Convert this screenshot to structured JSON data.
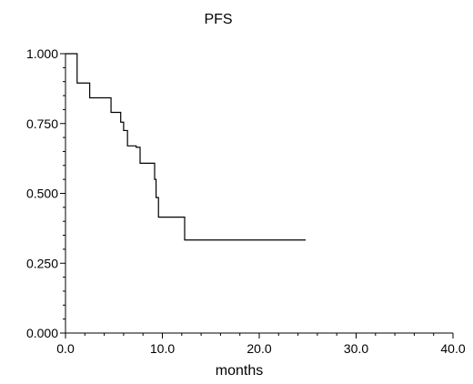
{
  "chart_data": {
    "type": "line",
    "title": "PFS",
    "xlabel": "months",
    "ylabel": "",
    "xlim": [
      0,
      40
    ],
    "ylim": [
      0,
      1
    ],
    "x_ticks": [
      0,
      10,
      20,
      30,
      40
    ],
    "x_tick_labels": [
      "0.0",
      "10.0",
      "20.0",
      "30.0",
      "40.0"
    ],
    "y_ticks": [
      0,
      0.25,
      0.5,
      0.75,
      1.0
    ],
    "y_tick_labels": [
      "0.000",
      "0.250",
      "0.500",
      "0.750",
      "1.000"
    ],
    "grid": false,
    "step": true,
    "series": [
      {
        "x": [
          0,
          1.2,
          2.5,
          4.7,
          5.7,
          6.0,
          6.4,
          7.3,
          7.7,
          9.2,
          9.35,
          9.6,
          12.3,
          24.8
        ],
        "y": [
          1.0,
          0.895,
          0.842,
          0.79,
          0.755,
          0.725,
          0.67,
          0.665,
          0.608,
          0.55,
          0.485,
          0.415,
          0.333,
          0.333
        ]
      }
    ]
  }
}
